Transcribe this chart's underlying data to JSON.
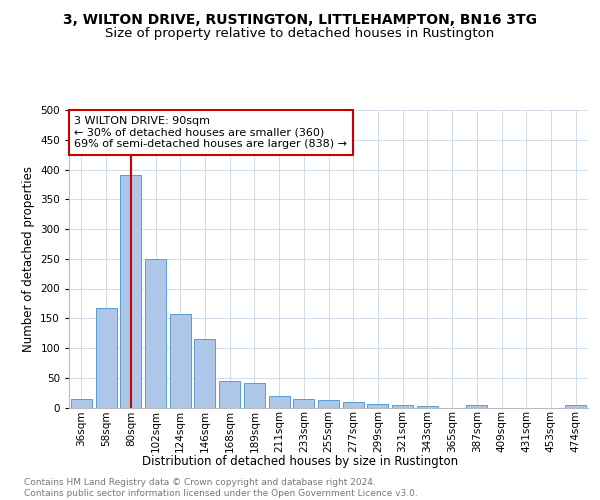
{
  "title": "3, WILTON DRIVE, RUSTINGTON, LITTLEHAMPTON, BN16 3TG",
  "subtitle": "Size of property relative to detached houses in Rustington",
  "xlabel": "Distribution of detached houses by size in Rustington",
  "ylabel": "Number of detached properties",
  "categories": [
    "36sqm",
    "58sqm",
    "80sqm",
    "102sqm",
    "124sqm",
    "146sqm",
    "168sqm",
    "189sqm",
    "211sqm",
    "233sqm",
    "255sqm",
    "277sqm",
    "299sqm",
    "321sqm",
    "343sqm",
    "365sqm",
    "387sqm",
    "409sqm",
    "431sqm",
    "453sqm",
    "474sqm"
  ],
  "values": [
    15,
    167,
    390,
    249,
    157,
    115,
    44,
    41,
    19,
    15,
    13,
    9,
    6,
    4,
    2,
    0,
    5,
    0,
    0,
    0,
    5
  ],
  "bar_color": "#aec6e8",
  "bar_edge_color": "#5a9fd4",
  "vline_index": 2,
  "vline_color": "#cc0000",
  "annotation_text": "3 WILTON DRIVE: 90sqm\n← 30% of detached houses are smaller (360)\n69% of semi-detached houses are larger (838) →",
  "annotation_box_facecolor": "#ffffff",
  "annotation_box_edgecolor": "#cc0000",
  "ylim": [
    0,
    500
  ],
  "yticks": [
    0,
    50,
    100,
    150,
    200,
    250,
    300,
    350,
    400,
    450,
    500
  ],
  "background_color": "#ffffff",
  "grid_color": "#c8d8e8",
  "footer_text": "Contains HM Land Registry data © Crown copyright and database right 2024.\nContains public sector information licensed under the Open Government Licence v3.0.",
  "title_fontsize": 10,
  "subtitle_fontsize": 9.5,
  "xlabel_fontsize": 8.5,
  "ylabel_fontsize": 8.5,
  "tick_fontsize": 7.5,
  "annotation_fontsize": 8,
  "footer_fontsize": 6.5
}
